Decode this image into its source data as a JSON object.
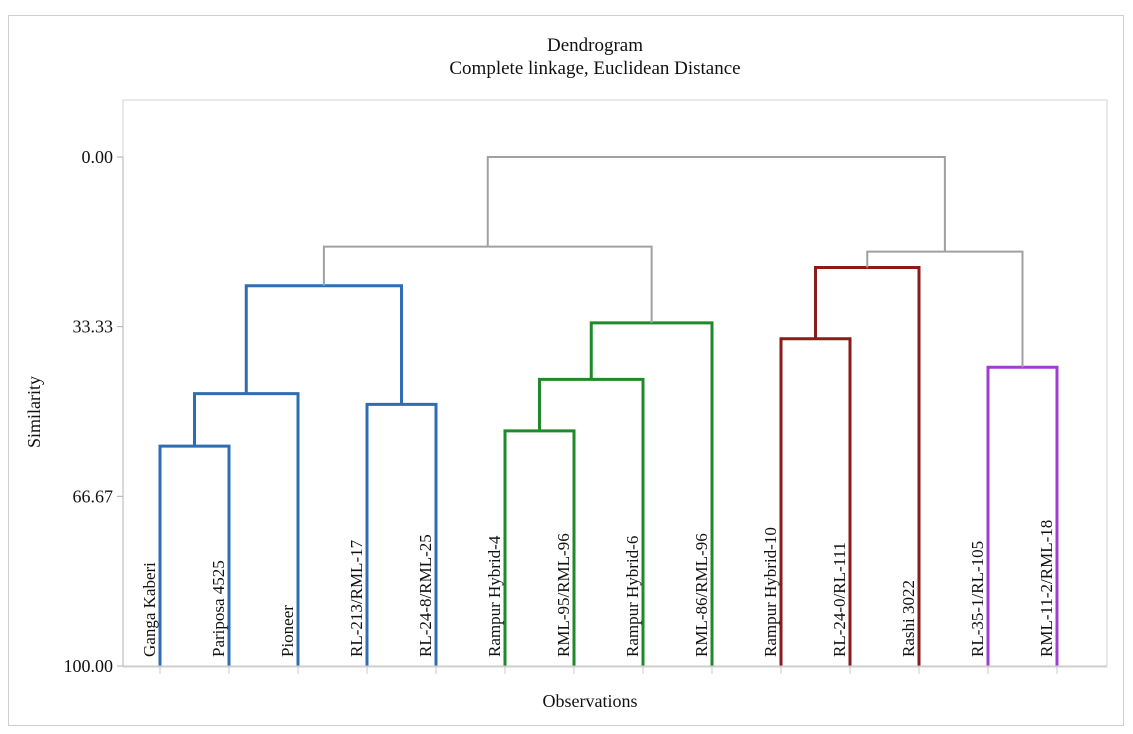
{
  "chart_data": {
    "type": "dendrogram",
    "title": "Dendrogram",
    "subtitle": "Complete linkage, Euclidean Distance",
    "xlabel": "Observations",
    "ylabel": "Similarity",
    "ylim": [
      0,
      100
    ],
    "yticks": [
      "0.00",
      "33.33",
      "66.67",
      "100.00"
    ],
    "leaves": [
      "Ganga Kaberi",
      "Pariposa 4525",
      "Pioneer",
      "RL-213/RML-17",
      "RL-24-8/RML-25",
      "Rampur Hybrid-4",
      "RML-95/RML-96",
      "Rampur Hybrid-6",
      "RML-86/RML-96",
      "Rampur Hybrid-10",
      "RL-24-0/RL-111",
      "Rashi 3022",
      "RL-35-1/RL-105",
      "RML-11-2/RML-18"
    ],
    "merges": [
      {
        "left": 0,
        "right": 1,
        "similarity": 56.8,
        "color": "#2e6db4"
      },
      {
        "left": "m0",
        "right": 2,
        "similarity": 46.5,
        "color": "#2e6db4"
      },
      {
        "left": 3,
        "right": 4,
        "similarity": 48.6,
        "color": "#2e6db4"
      },
      {
        "left": "m1",
        "right": "m2",
        "similarity": 25.3,
        "color": "#2e6db4"
      },
      {
        "left": 5,
        "right": 6,
        "similarity": 53.8,
        "color": "#1e8a2a"
      },
      {
        "left": "m4",
        "right": 7,
        "similarity": 43.7,
        "color": "#1e8a2a"
      },
      {
        "left": "m5",
        "right": 8,
        "similarity": 32.6,
        "color": "#1e8a2a"
      },
      {
        "left": "m3",
        "right": "m6",
        "similarity": 17.6,
        "color": "#a0a0a0"
      },
      {
        "left": 9,
        "right": 10,
        "similarity": 35.7,
        "color": "#8b1a1a"
      },
      {
        "left": "m8",
        "right": 11,
        "similarity": 21.7,
        "color": "#8b1a1a"
      },
      {
        "left": 12,
        "right": 13,
        "similarity": 41.3,
        "color": "#a23bd0"
      },
      {
        "left": "m9",
        "right": "m10",
        "similarity": 18.6,
        "color": "#a0a0a0"
      },
      {
        "left": "m7",
        "right": "m11",
        "similarity": 0.0,
        "color": "#a0a0a0"
      }
    ],
    "colors": {
      "cluster1": "#2e6db4",
      "cluster2": "#1e8a2a",
      "cluster3": "#8b1a1a",
      "cluster4": "#a23bd0",
      "links": "#a0a0a0",
      "axis": "#b0b0b0"
    },
    "grid": false
  }
}
